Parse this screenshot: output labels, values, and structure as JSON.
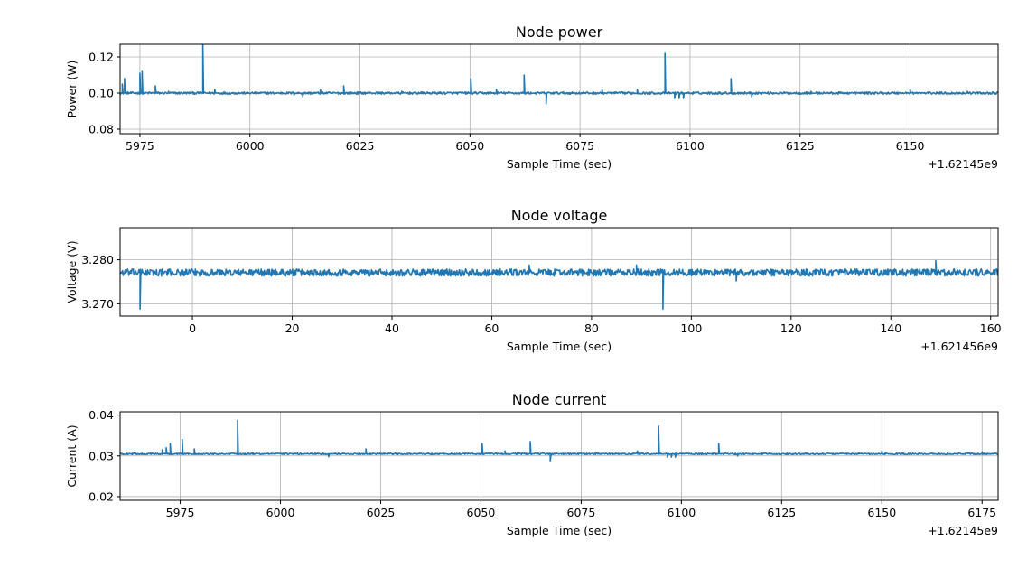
{
  "chart_data": [
    {
      "type": "line",
      "title": "Node power",
      "xlabel": "Sample Time (sec)",
      "ylabel": "Power (W)",
      "x_offset_label": "+1.62145e9",
      "xlim": [
        5970.5,
        6170
      ],
      "ylim": [
        0.0775,
        0.127
      ],
      "xticks": [
        5975,
        6000,
        6025,
        6050,
        6075,
        6100,
        6125,
        6150
      ],
      "yticks": [
        0.08,
        0.1,
        0.12
      ],
      "ytick_labels": [
        "0.08",
        "0.10",
        "0.12"
      ],
      "grid": true,
      "color": "#1f77b4",
      "baseline": 0.1,
      "noise": 0.0006,
      "x_start": 5970.5,
      "x_end": 6170,
      "spikes": [
        {
          "x": 5971.0,
          "y": 0.105
        },
        {
          "x": 5971.5,
          "y": 0.108
        },
        {
          "x": 5975.0,
          "y": 0.111
        },
        {
          "x": 5975.5,
          "y": 0.112
        },
        {
          "x": 5978.5,
          "y": 0.104
        },
        {
          "x": 5981.5,
          "y": 0.101
        },
        {
          "x": 5989.3,
          "y": 0.127
        },
        {
          "x": 5992.0,
          "y": 0.102
        },
        {
          "x": 6010.0,
          "y": 0.099
        },
        {
          "x": 6012.0,
          "y": 0.098
        },
        {
          "x": 6016.0,
          "y": 0.102
        },
        {
          "x": 6021.3,
          "y": 0.104
        },
        {
          "x": 6034.5,
          "y": 0.101
        },
        {
          "x": 6050.2,
          "y": 0.108
        },
        {
          "x": 6056.0,
          "y": 0.102
        },
        {
          "x": 6062.3,
          "y": 0.11
        },
        {
          "x": 6067.3,
          "y": 0.094
        },
        {
          "x": 6080.0,
          "y": 0.102
        },
        {
          "x": 6088.0,
          "y": 0.102
        },
        {
          "x": 6094.3,
          "y": 0.122
        },
        {
          "x": 6096.5,
          "y": 0.097
        },
        {
          "x": 6097.5,
          "y": 0.097
        },
        {
          "x": 6098.5,
          "y": 0.097
        },
        {
          "x": 6109.3,
          "y": 0.108
        },
        {
          "x": 6114.0,
          "y": 0.098
        },
        {
          "x": 6127.5,
          "y": 0.101
        },
        {
          "x": 6150.0,
          "y": 0.102
        },
        {
          "x": 6163.0,
          "y": 0.101
        }
      ]
    },
    {
      "type": "line",
      "title": "Node voltage",
      "xlabel": "Sample Time (sec)",
      "ylabel": "Voltage (V)",
      "x_offset_label": "+1.621456e9",
      "xlim": [
        -14.5,
        161.5
      ],
      "ylim": [
        3.2672,
        3.2873
      ],
      "xticks": [
        0,
        20,
        40,
        60,
        80,
        100,
        120,
        140,
        160
      ],
      "yticks": [
        3.27,
        3.28
      ],
      "ytick_labels": [
        "3.270",
        "3.280"
      ],
      "grid": true,
      "color": "#1f77b4",
      "baseline": 3.2771,
      "noise": 0.0008,
      "x_start": -14.5,
      "x_end": 161.5,
      "spikes": [
        {
          "x": -10.5,
          "y": 3.2688
        },
        {
          "x": 67.5,
          "y": 3.2788
        },
        {
          "x": 89.0,
          "y": 3.2788
        },
        {
          "x": 94.3,
          "y": 3.2688
        },
        {
          "x": 109.0,
          "y": 3.2752
        },
        {
          "x": 149.0,
          "y": 3.2798
        }
      ]
    },
    {
      "type": "line",
      "title": "Node current",
      "xlabel": "Sample Time (sec)",
      "ylabel": "Current (A)",
      "x_offset_label": "+1.62145e9",
      "xlim": [
        5960,
        6179
      ],
      "ylim": [
        0.0191,
        0.0408
      ],
      "xticks": [
        5975,
        6000,
        6025,
        6050,
        6075,
        6100,
        6125,
        6150,
        6175
      ],
      "yticks": [
        0.02,
        0.03,
        0.04
      ],
      "ytick_labels": [
        "0.02",
        "0.03",
        "0.04"
      ],
      "grid": true,
      "color": "#1f77b4",
      "baseline": 0.0305,
      "noise": 0.00018,
      "x_start": 5960,
      "x_end": 6179,
      "spikes": [
        {
          "x": 5970.5,
          "y": 0.0315
        },
        {
          "x": 5971.5,
          "y": 0.032
        },
        {
          "x": 5972.5,
          "y": 0.033
        },
        {
          "x": 5975.5,
          "y": 0.034
        },
        {
          "x": 5978.5,
          "y": 0.0317
        },
        {
          "x": 5989.3,
          "y": 0.0387
        },
        {
          "x": 6012.0,
          "y": 0.0298
        },
        {
          "x": 6021.3,
          "y": 0.0317
        },
        {
          "x": 6050.3,
          "y": 0.033
        },
        {
          "x": 6056.0,
          "y": 0.0312
        },
        {
          "x": 6062.3,
          "y": 0.0335
        },
        {
          "x": 6067.3,
          "y": 0.0288
        },
        {
          "x": 6089.0,
          "y": 0.0312
        },
        {
          "x": 6094.3,
          "y": 0.0373
        },
        {
          "x": 6096.5,
          "y": 0.0297
        },
        {
          "x": 6097.5,
          "y": 0.0297
        },
        {
          "x": 6098.5,
          "y": 0.0297
        },
        {
          "x": 6109.3,
          "y": 0.033
        },
        {
          "x": 6114.0,
          "y": 0.03
        },
        {
          "x": 6150.0,
          "y": 0.0312
        },
        {
          "x": 6175.0,
          "y": 0.031
        }
      ]
    }
  ]
}
